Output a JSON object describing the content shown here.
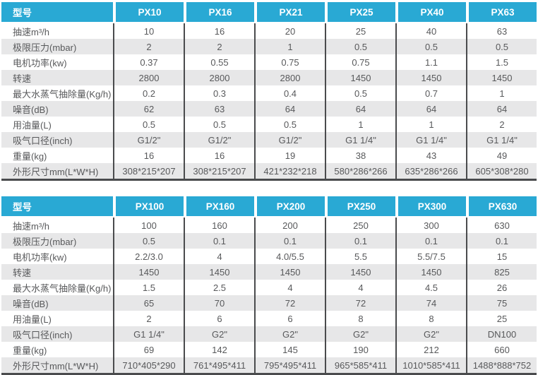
{
  "colors": {
    "header_bg": "#29a9d4",
    "header_text": "#ffffff",
    "row_stripe": "#e7e7e8",
    "row_plain": "#ffffff",
    "divider_dark": "#4a4b4d",
    "body_text": "#58595b"
  },
  "tables": [
    {
      "name": "px-small-models",
      "header_label": "型号",
      "models": [
        "PX10",
        "PX16",
        "PX21",
        "PX25",
        "PX40",
        "PX63"
      ],
      "rows": [
        {
          "label": "抽速m³/h",
          "values": [
            "10",
            "16",
            "20",
            "25",
            "40",
            "63"
          ]
        },
        {
          "label": "极限压力(mbar)",
          "values": [
            "2",
            "2",
            "1",
            "0.5",
            "0.5",
            "0.5"
          ]
        },
        {
          "label": "电机功率(kw)",
          "values": [
            "0.37",
            "0.55",
            "0.75",
            "0.75",
            "1.1",
            "1.5"
          ]
        },
        {
          "label": "转速",
          "values": [
            "2800",
            "2800",
            "2800",
            "1450",
            "1450",
            "1450"
          ]
        },
        {
          "label": "最大水蒸气抽除量(Kg/h)",
          "values": [
            "0.2",
            "0.3",
            "0.4",
            "0.5",
            "0.7",
            "1"
          ]
        },
        {
          "label": "噪音(dB)",
          "values": [
            "62",
            "63",
            "64",
            "64",
            "64",
            "64"
          ]
        },
        {
          "label": "用油量(L)",
          "values": [
            "0.5",
            "0.5",
            "0.5",
            "1",
            "1",
            "2"
          ]
        },
        {
          "label": "吸气口径(inch)",
          "values": [
            "G1/2\"",
            "G1/2\"",
            "G1/2\"",
            "G1 1/4\"",
            "G1 1/4\"",
            "G1 1/4\""
          ]
        },
        {
          "label": "重量(kg)",
          "values": [
            "16",
            "16",
            "19",
            "38",
            "43",
            "49"
          ]
        },
        {
          "label": "外形尺寸mm(L*W*H)",
          "values": [
            "308*215*207",
            "308*215*207",
            "421*232*218",
            "580*286*266",
            "635*286*266",
            "605*308*280"
          ]
        }
      ]
    },
    {
      "name": "px-large-models",
      "header_label": "型号",
      "models": [
        "PX100",
        "PX160",
        "PX200",
        "PX250",
        "PX300",
        "PX630"
      ],
      "rows": [
        {
          "label": "抽速m³/h",
          "values": [
            "100",
            "160",
            "200",
            "250",
            "300",
            "630"
          ]
        },
        {
          "label": "极限压力(mbar)",
          "values": [
            "0.5",
            "0.1",
            "0.1",
            "0.1",
            "0.1",
            "0.1"
          ]
        },
        {
          "label": "电机功率(kw)",
          "values": [
            "2.2/3.0",
            "4",
            "4.0/5.5",
            "5.5",
            "5.5/7.5",
            "15"
          ]
        },
        {
          "label": "转速",
          "values": [
            "1450",
            "1450",
            "1450",
            "1450",
            "1450",
            "825"
          ]
        },
        {
          "label": "最大水蒸气抽除量(Kg/h)",
          "values": [
            "1.5",
            "2.5",
            "4",
            "4",
            "4.5",
            "26"
          ]
        },
        {
          "label": "噪音(dB)",
          "values": [
            "65",
            "70",
            "72",
            "72",
            "74",
            "75"
          ]
        },
        {
          "label": "用油量(L)",
          "values": [
            "2",
            "6",
            "6",
            "8",
            "8",
            "25"
          ]
        },
        {
          "label": "吸气口径(inch)",
          "values": [
            "G1 1/4\"",
            "G2\"",
            "G2\"",
            "G2\"",
            "G2\"",
            "DN100"
          ]
        },
        {
          "label": "重量(kg)",
          "values": [
            "69",
            "142",
            "145",
            "190",
            "212",
            "660"
          ]
        },
        {
          "label": "外形尺寸mm(L*W*H)",
          "values": [
            "710*405*290",
            "761*495*411",
            "795*495*411",
            "965*585*411",
            "1010*585*411",
            "1488*888*752"
          ]
        }
      ]
    }
  ]
}
